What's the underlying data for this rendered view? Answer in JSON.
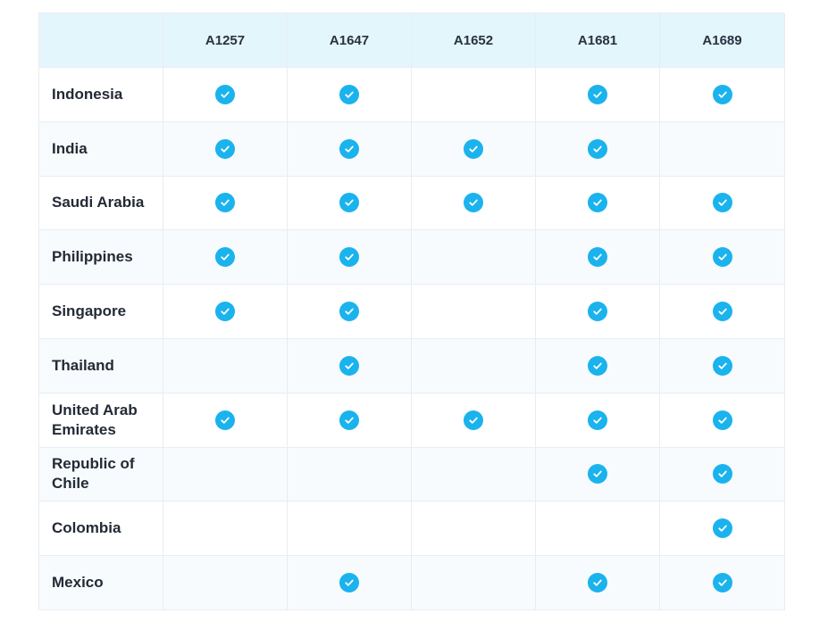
{
  "table": {
    "columns": [
      "",
      "A1257",
      "A1647",
      "A1652",
      "A1681",
      "A1689"
    ],
    "rows": [
      {
        "country": "Indonesia",
        "checks": [
          true,
          true,
          false,
          true,
          true
        ]
      },
      {
        "country": "India",
        "checks": [
          true,
          true,
          true,
          true,
          false
        ]
      },
      {
        "country": "Saudi Arabia",
        "checks": [
          true,
          true,
          true,
          true,
          true
        ]
      },
      {
        "country": "Philippines",
        "checks": [
          true,
          true,
          false,
          true,
          true
        ]
      },
      {
        "country": "Singapore",
        "checks": [
          true,
          true,
          false,
          true,
          true
        ]
      },
      {
        "country": "Thailand",
        "checks": [
          false,
          true,
          false,
          true,
          true
        ]
      },
      {
        "country": "United Arab Emirates",
        "checks": [
          true,
          true,
          true,
          true,
          true
        ]
      },
      {
        "country": "Republic of Chile",
        "checks": [
          false,
          false,
          false,
          true,
          true
        ]
      },
      {
        "country": "Colombia",
        "checks": [
          false,
          false,
          false,
          false,
          true
        ]
      },
      {
        "country": "Mexico",
        "checks": [
          false,
          true,
          false,
          true,
          true
        ]
      }
    ]
  },
  "icons": {
    "check": "check-circle-icon"
  },
  "colors": {
    "header_bg": "#e3f6fc",
    "check_bg": "#1ab3ed",
    "border": "#e7edf2",
    "alt_row_bg": "#f8fbfd"
  }
}
